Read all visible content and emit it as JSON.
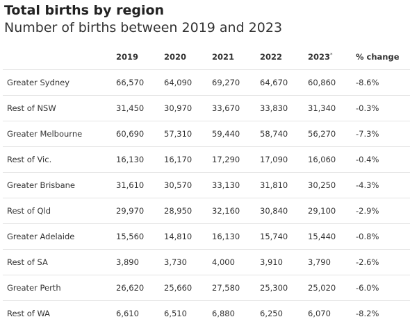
{
  "header": {
    "title": "Total births by region",
    "subtitle": "Number of births between 2019 and 2023"
  },
  "chart_data": {
    "type": "table",
    "title": "Total births by region",
    "subtitle": "Number of births between 2019 and 2023",
    "columns": [
      {
        "label": "",
        "sup": ""
      },
      {
        "label": "2019",
        "sup": ""
      },
      {
        "label": "2020",
        "sup": ""
      },
      {
        "label": "2021",
        "sup": ""
      },
      {
        "label": "2022",
        "sup": ""
      },
      {
        "label": "2023",
        "sup": "*"
      },
      {
        "label": "% change",
        "sup": ""
      }
    ],
    "rows": [
      {
        "region": "Greater Sydney",
        "values": [
          "66,570",
          "64,090",
          "69,270",
          "64,670",
          "60,860"
        ],
        "change": "-8.6%"
      },
      {
        "region": "Rest of NSW",
        "values": [
          "31,450",
          "30,970",
          "33,670",
          "33,830",
          "31,340"
        ],
        "change": "-0.3%"
      },
      {
        "region": "Greater Melbourne",
        "values": [
          "60,690",
          "57,310",
          "59,440",
          "58,740",
          "56,270"
        ],
        "change": "-7.3%"
      },
      {
        "region": "Rest of Vic.",
        "values": [
          "16,130",
          "16,170",
          "17,290",
          "17,090",
          "16,060"
        ],
        "change": "-0.4%"
      },
      {
        "region": "Greater Brisbane",
        "values": [
          "31,610",
          "30,570",
          "33,130",
          "31,810",
          "30,250"
        ],
        "change": "-4.3%"
      },
      {
        "region": "Rest of Qld",
        "values": [
          "29,970",
          "28,950",
          "32,160",
          "30,840",
          "29,100"
        ],
        "change": "-2.9%"
      },
      {
        "region": "Greater Adelaide",
        "values": [
          "15,560",
          "14,810",
          "16,130",
          "15,740",
          "15,440"
        ],
        "change": "-0.8%"
      },
      {
        "region": "Rest of SA",
        "values": [
          "3,890",
          "3,730",
          "4,000",
          "3,910",
          "3,790"
        ],
        "change": "-2.6%"
      },
      {
        "region": "Greater Perth",
        "values": [
          "26,620",
          "25,660",
          "27,580",
          "25,300",
          "25,020"
        ],
        "change": "-6.0%"
      },
      {
        "region": "Rest of WA",
        "values": [
          "6,610",
          "6,510",
          "6,880",
          "6,250",
          "6,070"
        ],
        "change": "-8.2%"
      }
    ]
  }
}
